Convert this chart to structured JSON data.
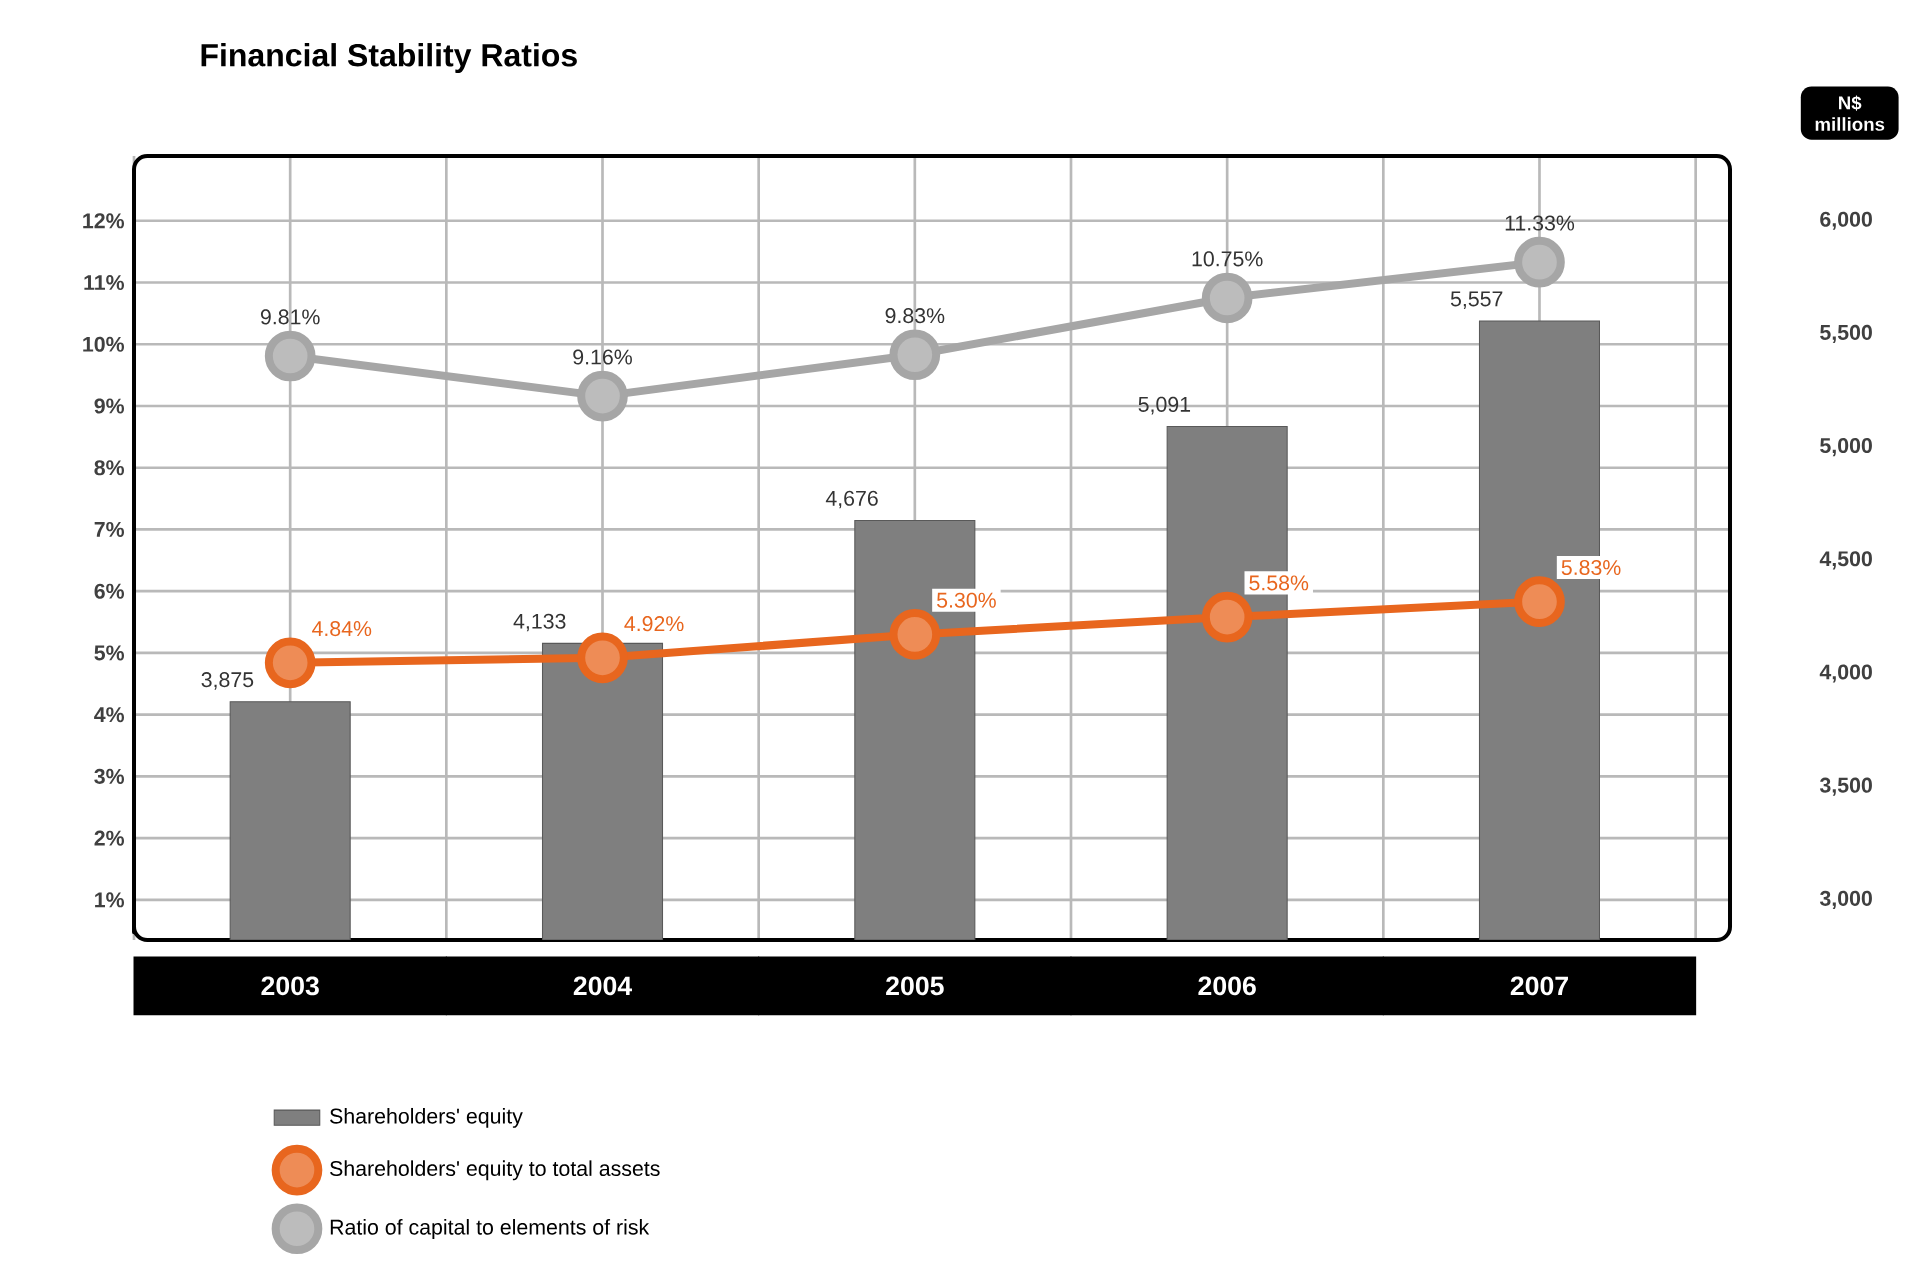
{
  "chart_data": {
    "type": "bar",
    "title": "Financial Stability Ratios",
    "y2label": "N$ millions",
    "categories": [
      "2003",
      "2004",
      "2005",
      "2006",
      "2007"
    ],
    "series": [
      {
        "name": "Shareholders' equity",
        "axis": "y2",
        "color": "#7f7f7f",
        "values": [
          3875,
          4133,
          4676,
          5091,
          5557
        ],
        "value_labels": [
          "3,875",
          "4,133",
          "4,676",
          "5,091",
          "5,557"
        ]
      },
      {
        "name": "Shareholders' equity to total assets",
        "type": "line",
        "color": "#e8661e",
        "values": [
          4.84,
          4.92,
          5.3,
          5.58,
          5.83
        ],
        "value_labels": [
          "4.84%",
          "4.92%",
          "5.30%",
          "5.58%",
          "5.83%"
        ]
      },
      {
        "name": "Ratio of capital to elements of risk",
        "type": "line",
        "color": "#a6a6a6",
        "values": [
          9.81,
          9.16,
          9.83,
          10.75,
          11.33
        ],
        "value_labels": [
          "9.81%",
          "9.16%",
          "9.83%",
          "10.75%",
          "11.33%"
        ]
      }
    ],
    "ylim": [
      0.35,
      13.05
    ],
    "yticks": [
      {
        "value": 1,
        "label": "1%"
      },
      {
        "value": 2,
        "label": "2%"
      },
      {
        "value": 3,
        "label": "3%"
      },
      {
        "value": 4,
        "label": "4%"
      },
      {
        "value": 5,
        "label": "5%"
      },
      {
        "value": 6,
        "label": "6%"
      },
      {
        "value": 7,
        "label": "7%"
      },
      {
        "value": 8,
        "label": "8%"
      },
      {
        "value": 9,
        "label": "9%"
      },
      {
        "value": 10,
        "label": "10%"
      },
      {
        "value": 11,
        "label": "11%"
      },
      {
        "value": 12,
        "label": "12%"
      }
    ],
    "y2lim": [
      2823,
      6286
    ],
    "y2ticks": [
      {
        "value": 3000,
        "label": "3,000"
      },
      {
        "value": 3500,
        "label": "3,500"
      },
      {
        "value": 4000,
        "label": "4,000"
      },
      {
        "value": 4500,
        "label": "4,500"
      },
      {
        "value": 5000,
        "label": "5,000"
      },
      {
        "value": 5500,
        "label": "5,500"
      },
      {
        "value": 6000,
        "label": "6,000"
      }
    ],
    "grid": true,
    "legend": "bottom",
    "marker": "circle",
    "line_style": "solid"
  }
}
